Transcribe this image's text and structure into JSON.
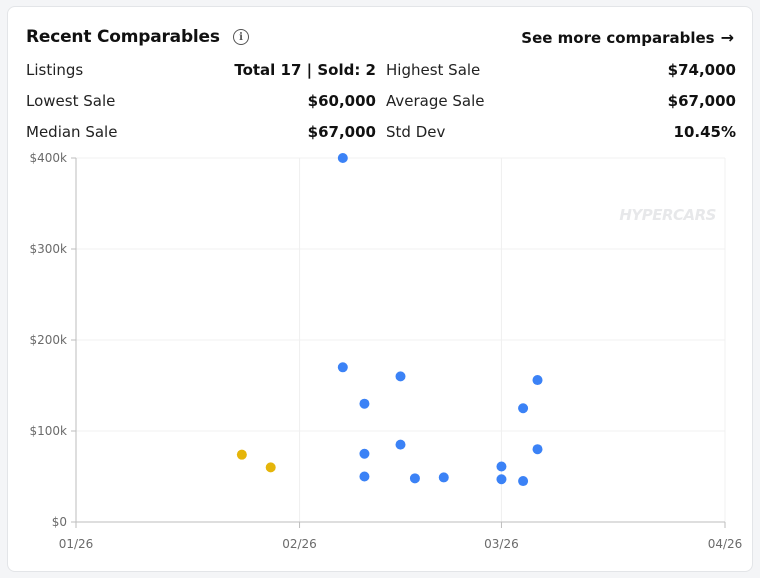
{
  "header": {
    "title": "Recent Comparables",
    "info_icon": "info-icon",
    "see_more_label": "See more comparables",
    "see_more_icon": "arrow-right-icon"
  },
  "stats": [
    {
      "label": "Listings",
      "value": "Total 17 | Sold: 2"
    },
    {
      "label": "Highest Sale",
      "value": "$74,000"
    },
    {
      "label": "Lowest Sale",
      "value": "$60,000"
    },
    {
      "label": "Average Sale",
      "value": "$67,000"
    },
    {
      "label": "Median Sale",
      "value": "$67,000"
    },
    {
      "label": "Std Dev",
      "value": "10.45%"
    }
  ],
  "watermark": "HYPERCARS",
  "colors": {
    "listing": "#3b82f6",
    "sold": "#e5b50a",
    "grid": "#f0f0f0",
    "axis": "#bdbdbd"
  },
  "chart_data": {
    "type": "scatter",
    "xlim": [
      "2026-01-01",
      "2026-04-01"
    ],
    "ylim": [
      0,
      400000
    ],
    "x_ticks": [
      {
        "date": "2026-01-01",
        "label": "01/26"
      },
      {
        "date": "2026-02-01",
        "label": "02/26"
      },
      {
        "date": "2026-03-01",
        "label": "03/26"
      },
      {
        "date": "2026-04-01",
        "label": "04/26"
      }
    ],
    "y_ticks": [
      {
        "value": 0,
        "label": "$0"
      },
      {
        "value": 100000,
        "label": "$100k"
      },
      {
        "value": 200000,
        "label": "$200k"
      },
      {
        "value": 300000,
        "label": "$300k"
      },
      {
        "value": 400000,
        "label": "$400k"
      }
    ],
    "grid": true,
    "series": [
      {
        "color": "#3b82f6",
        "points": [
          {
            "x": "2026-02-07",
            "y": 400000
          },
          {
            "x": "2026-02-07",
            "y": 170000
          },
          {
            "x": "2026-02-10",
            "y": 130000
          },
          {
            "x": "2026-02-10",
            "y": 50000
          },
          {
            "x": "2026-02-10",
            "y": 75000
          },
          {
            "x": "2026-02-15",
            "y": 160000
          },
          {
            "x": "2026-02-15",
            "y": 85000
          },
          {
            "x": "2026-02-17",
            "y": 48000
          },
          {
            "x": "2026-02-21",
            "y": 49000
          },
          {
            "x": "2026-03-01",
            "y": 61000
          },
          {
            "x": "2026-03-01",
            "y": 47000
          },
          {
            "x": "2026-03-04",
            "y": 125000
          },
          {
            "x": "2026-03-04",
            "y": 45000
          },
          {
            "x": "2026-03-06",
            "y": 156000
          },
          {
            "x": "2026-03-06",
            "y": 80000
          }
        ]
      },
      {
        "color": "#e5b50a",
        "points": [
          {
            "x": "2026-01-24",
            "y": 74000
          },
          {
            "x": "2026-01-28",
            "y": 60000
          }
        ]
      }
    ]
  }
}
